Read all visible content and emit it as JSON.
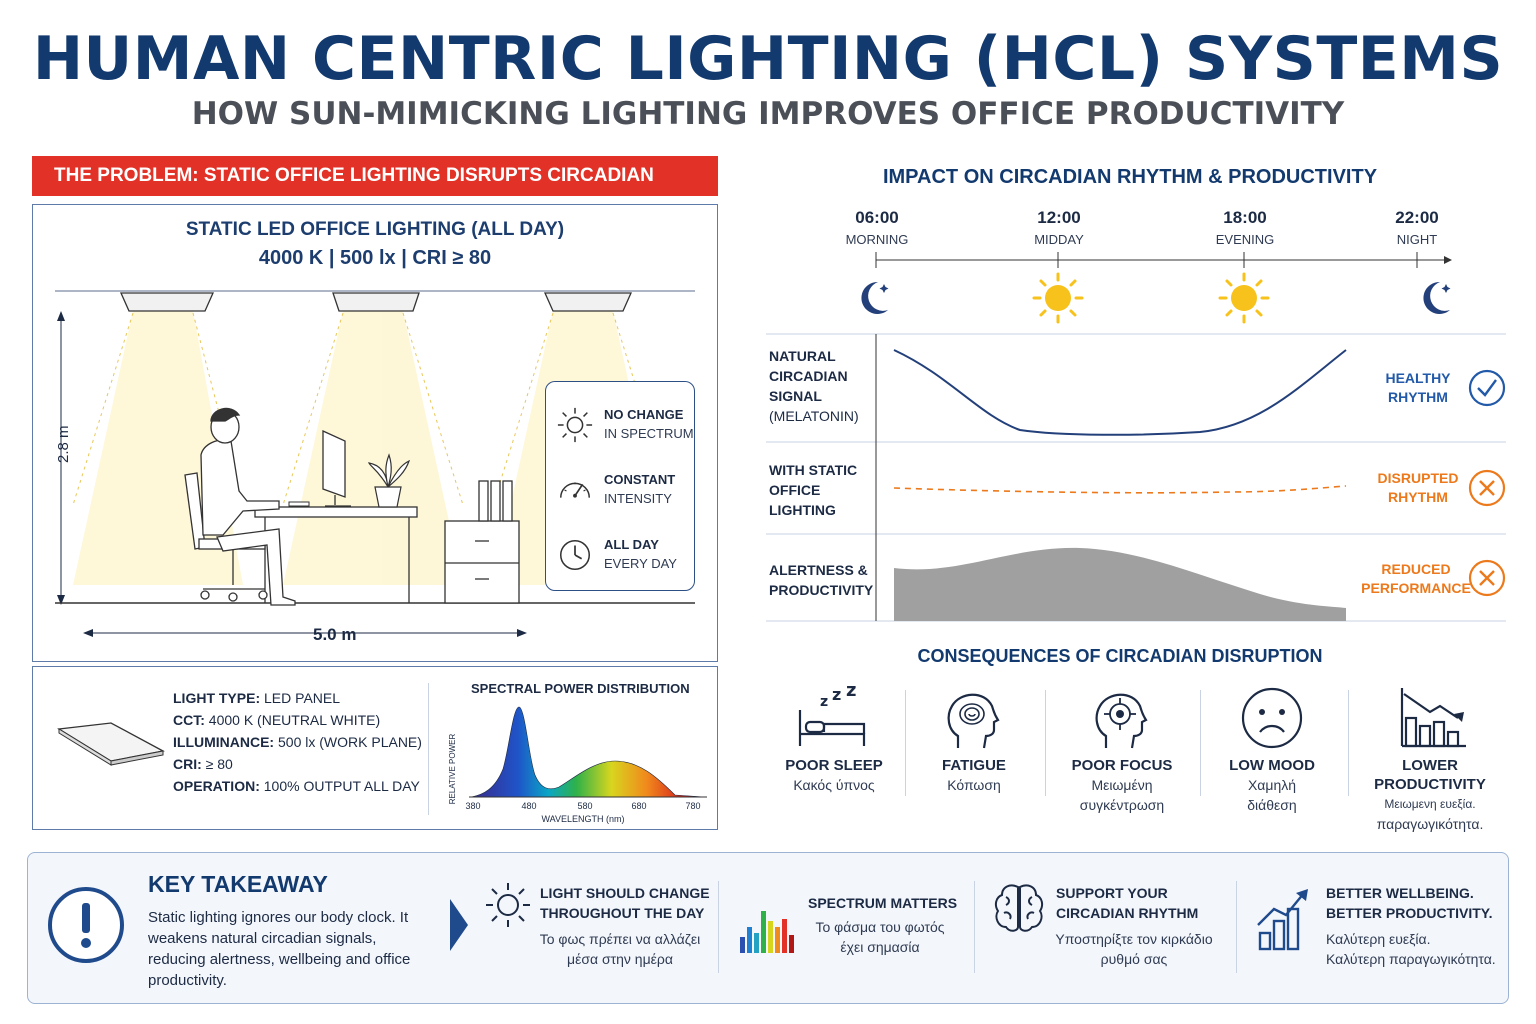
{
  "header": {
    "title": "HUMAN CENTRIC LIGHTING (HCL) SYSTEMS",
    "subtitle": "HOW SUN-MIMICKING LIGHTING IMPROVES OFFICE PRODUCTIVITY"
  },
  "problem": {
    "banner": "THE PROBLEM: STATIC OFFICE LIGHTING DISRUPTS CIRCADIAN RHYTHM",
    "room_title": "STATIC LED OFFICE LIGHTING (ALL DAY)",
    "room_specs": "4000 K  |  500 lx  |  CRI ≥ 80",
    "height": "2.8 m",
    "width": "5.0 m",
    "features": [
      {
        "line1": "NO CHANGE",
        "line2": "IN SPECTRUM",
        "icon": "sun-icon"
      },
      {
        "line1": "CONSTANT",
        "line2": "INTENSITY",
        "icon": "gauge-icon"
      },
      {
        "line1": "ALL DAY",
        "line2": "EVERY DAY",
        "icon": "clock-icon"
      }
    ]
  },
  "specs": {
    "light_type_label": "LIGHT TYPE:",
    "light_type": " LED PANEL",
    "cct_label": "CCT:",
    "cct": " 4000 K (NEUTRAL WHITE)",
    "illuminance_label": "ILLUMINANCE:",
    "illuminance": " 500 lx (WORK PLANE)",
    "cri_label": "CRI:",
    "cri": " ≥ 80",
    "operation_label": "OPERATION:",
    "operation": " 100% OUTPUT ALL DAY"
  },
  "spd": {
    "title": "SPECTRAL POWER DISTRIBUTION",
    "xlabel": "WAVELENGTH (nm)",
    "ylabel": "RELATIVE POWER",
    "ticks": [
      "380",
      "480",
      "580",
      "680",
      "780"
    ]
  },
  "impact": {
    "title": "IMPACT ON CIRCADIAN RHYTHM & PRODUCTIVITY",
    "times": [
      {
        "time": "06:00",
        "period": "MORNING"
      },
      {
        "time": "12:00",
        "period": "MIDDAY"
      },
      {
        "time": "18:00",
        "period": "EVENING"
      },
      {
        "time": "22:00",
        "period": "NIGHT"
      }
    ],
    "rows": [
      {
        "label_bold": [
          "NATURAL",
          "CIRCADIAN",
          "SIGNAL"
        ],
        "label_normal": "(MELATONIN)",
        "status": [
          "HEALTHY",
          "RHYTHM"
        ]
      },
      {
        "label_bold": [
          "WITH STATIC",
          "OFFICE",
          "LIGHTING"
        ],
        "status": [
          "DISRUPTED",
          "RHYTHM"
        ]
      },
      {
        "label_bold": [
          "ALERTNESS &",
          "PRODUCTIVITY"
        ],
        "status": [
          "REDUCED",
          "PERFORMANCE"
        ]
      }
    ]
  },
  "consequences": {
    "title": "CONSEQUENCES OF CIRCADIAN DISRUPTION",
    "items": [
      {
        "name": [
          "POOR SLEEP"
        ],
        "greek": [
          "Κακός ύπνος"
        ],
        "icon": "bed-icon"
      },
      {
        "name": [
          "FATIGUE"
        ],
        "greek": [
          "Κόπωση"
        ],
        "icon": "head-spiral-icon"
      },
      {
        "name": [
          "POOR FOCUS"
        ],
        "greek": [
          "Μειωμένη",
          "συγκέντρωση"
        ],
        "icon": "head-target-icon"
      },
      {
        "name": [
          "LOW MOOD"
        ],
        "greek": [
          "Χαμηλή",
          "διάθεση"
        ],
        "icon": "sad-face-icon"
      },
      {
        "name": [
          "LOWER",
          "PRODUCTIVITY"
        ],
        "greek": [
          "Μειωμενη ευεξία.",
          "παραγωγικότητα."
        ],
        "icon": "declining-chart-icon"
      }
    ]
  },
  "takeaway": {
    "title": "KEY TAKEAWAY",
    "text": "Static lighting ignores our body clock. It weakens natural circadian signals, reducing alertness, wellbeing and office productivity.",
    "items": [
      {
        "head": [
          "LIGHT SHOULD CHANGE",
          "THROUGHOUT THE DAY"
        ],
        "greek": [
          "Το φως πρέπει να αλλάζει",
          "μέσα στην ημέρα"
        ],
        "icon": "sun-icon"
      },
      {
        "head": [
          "SPECTRUM MATTERS"
        ],
        "greek": [
          "Το φάσμα του φωτός",
          "έχει σημασία"
        ],
        "icon": "spectrum-bars-icon"
      },
      {
        "head": [
          "SUPPORT YOUR",
          "CIRCADIAN RHYTHM"
        ],
        "greek": [
          "Υποστηρίξτε τον κιρκάδιο",
          "ρυθμό σας"
        ],
        "icon": "brain-icon"
      },
      {
        "head": [
          "BETTER WELLBEING.",
          "BETTER PRODUCTIVITY."
        ],
        "greek": [
          "Καλύτερη ευεξία.",
          "Καλύτερη παραγωγικότητα."
        ],
        "icon": "growth-chart-icon"
      }
    ]
  },
  "colors": {
    "navy": "#123a6e",
    "red": "#e23227",
    "orange": "#ec7a1c",
    "blue": "#2259a8"
  }
}
